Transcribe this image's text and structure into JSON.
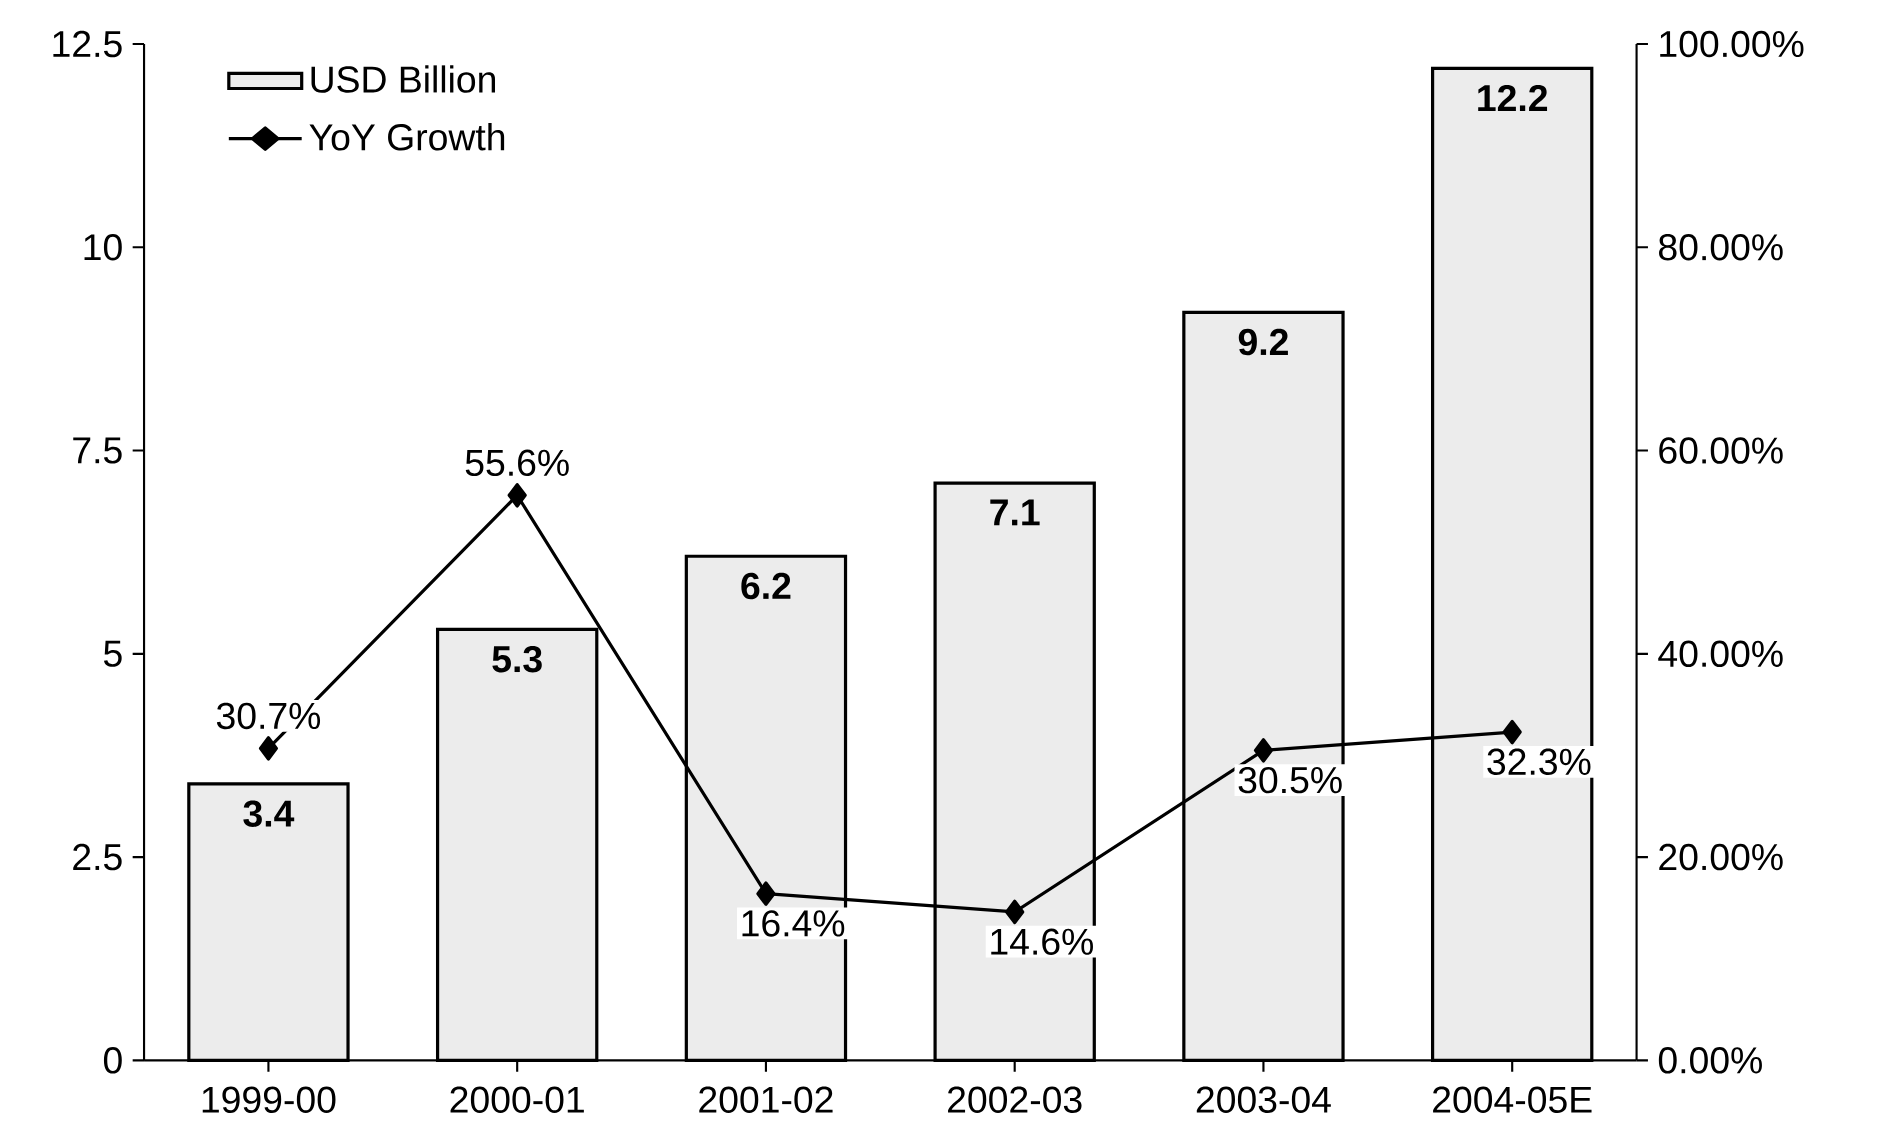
{
  "chart_data": {
    "type": "bar",
    "categories": [
      "1999-00",
      "2000-01",
      "2001-02",
      "2002-03",
      "2003-04",
      "2004-05E"
    ],
    "series": [
      {
        "name": "USD Billion",
        "color": "#ececec",
        "values": [
          3.4,
          5.3,
          6.2,
          7.1,
          9.2,
          12.2
        ]
      },
      {
        "name": "YoY Growth",
        "type": "line",
        "axis": "y2",
        "color": "#000000",
        "marker": "diamond",
        "values": [
          30.7,
          55.6,
          16.4,
          14.6,
          30.5,
          32.3
        ],
        "value_labels": [
          "30.7%",
          "55.6%",
          "16.4%",
          "14.6%",
          "30.5%",
          "32.3%"
        ]
      }
    ],
    "data_labels": true,
    "ylim": [
      0,
      12.5
    ],
    "yticks": [
      0,
      2.5,
      5,
      7.5,
      10,
      12.5
    ],
    "y2lim": [
      0,
      100
    ],
    "y2ticks": [
      {
        "value": 0,
        "label": "0.00%"
      },
      {
        "value": 20,
        "label": "20.00%"
      },
      {
        "value": 40,
        "label": "40.00%"
      },
      {
        "value": 60,
        "label": "60.00%"
      },
      {
        "value": 80,
        "label": "80.00%"
      },
      {
        "value": 100,
        "label": "100.00%"
      }
    ],
    "grid": false,
    "legend": "top left"
  }
}
